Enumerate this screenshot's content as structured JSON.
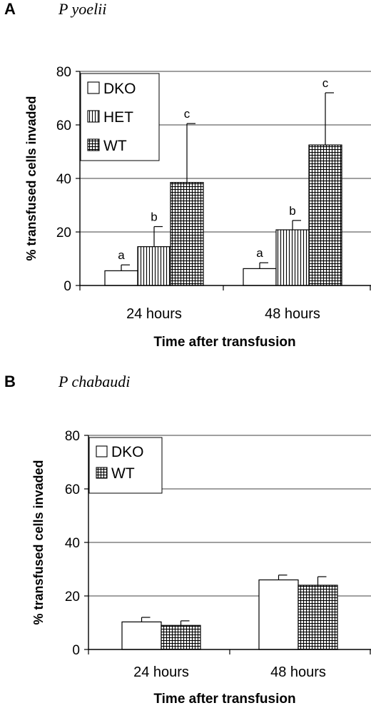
{
  "chart_data": [
    {
      "type": "bar",
      "panel_label": "A",
      "species_label": "P  yoelii",
      "categories": [
        "24 hours",
        "48 hours"
      ],
      "series": [
        {
          "name": "DKO",
          "values": [
            5.5,
            6.3
          ],
          "errors": [
            2.2,
            2.2
          ],
          "pattern": "open"
        },
        {
          "name": "HET",
          "values": [
            14.5,
            20.8
          ],
          "errors": [
            7.5,
            3.5
          ],
          "pattern": "vertical-lines"
        },
        {
          "name": "WT",
          "values": [
            38.5,
            52.5
          ],
          "errors": [
            22.0,
            19.5
          ],
          "pattern": "grid"
        }
      ],
      "significance_letters": [
        [
          "a",
          "b",
          "c"
        ],
        [
          "a",
          "b",
          "c"
        ]
      ],
      "ylim": [
        0,
        80
      ],
      "yticks": [
        "0",
        "20",
        "40",
        "60",
        "80"
      ],
      "ylabel": "% transfused cells invaded",
      "xlabel": "Time after transfusion",
      "grid": "horizontal",
      "legend_position": "top-left"
    },
    {
      "type": "bar",
      "panel_label": "B",
      "species_label": "P  chabaudi",
      "categories": [
        "24 hours",
        "48 hours"
      ],
      "series": [
        {
          "name": "DKO",
          "values": [
            10.3,
            26.0
          ],
          "errors": [
            1.7,
            1.8
          ],
          "pattern": "open"
        },
        {
          "name": "WT",
          "values": [
            9.0,
            24.0
          ],
          "errors": [
            1.7,
            3.2
          ],
          "pattern": "grid"
        }
      ],
      "ylim": [
        0,
        80
      ],
      "yticks": [
        "0",
        "20",
        "40",
        "60",
        "80"
      ],
      "ylabel": "% transfused cells invaded",
      "xlabel": "Time after transfusion",
      "grid": "horizontal",
      "legend_position": "top-left"
    }
  ]
}
